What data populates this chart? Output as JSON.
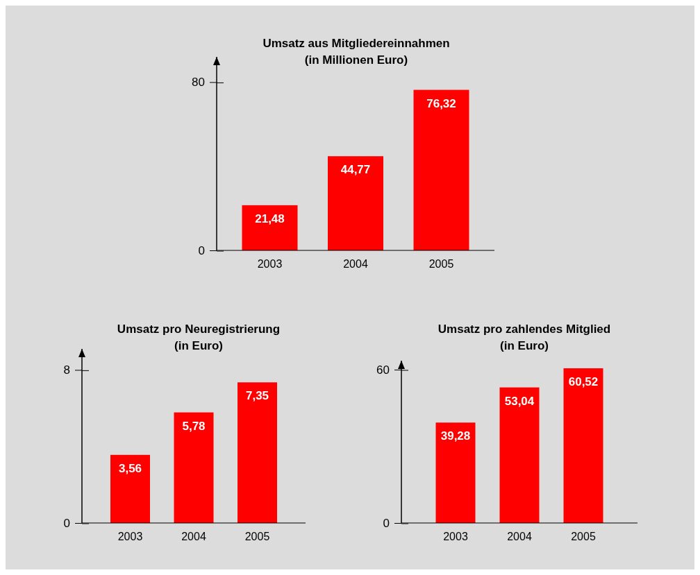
{
  "chart_data": [
    {
      "type": "bar",
      "title": "Umsatz aus Mitgliedereinnahmen\n(in Millionen Euro)",
      "categories": [
        "2003",
        "2004",
        "2005"
      ],
      "values": [
        21.48,
        44.77,
        76.32
      ],
      "value_labels": [
        "21,48",
        "44,77",
        "76,32"
      ],
      "color": "#ff0000",
      "ylim": [
        0,
        92
      ],
      "yticks": [
        0,
        80
      ]
    },
    {
      "type": "bar",
      "title": "Umsatz pro Neuregistrierung\n(in Euro)",
      "categories": [
        "2003",
        "2004",
        "2005"
      ],
      "values": [
        3.56,
        5.78,
        7.35
      ],
      "value_labels": [
        "3,56",
        "5,78",
        "7,35"
      ],
      "color": "#ff0000",
      "ylim": [
        0,
        9.1
      ],
      "yticks": [
        0,
        8
      ]
    },
    {
      "type": "bar",
      "title": "Umsatz pro zahlendes Mitglied\n(in Euro)",
      "categories": [
        "2003",
        "2004",
        "2005"
      ],
      "values": [
        39.28,
        53.04,
        60.52
      ],
      "value_labels": [
        "39,28",
        "53,04",
        "60,52"
      ],
      "color": "#ff0000",
      "ylim": [
        0,
        63.5
      ],
      "yticks": [
        0,
        60
      ]
    }
  ]
}
